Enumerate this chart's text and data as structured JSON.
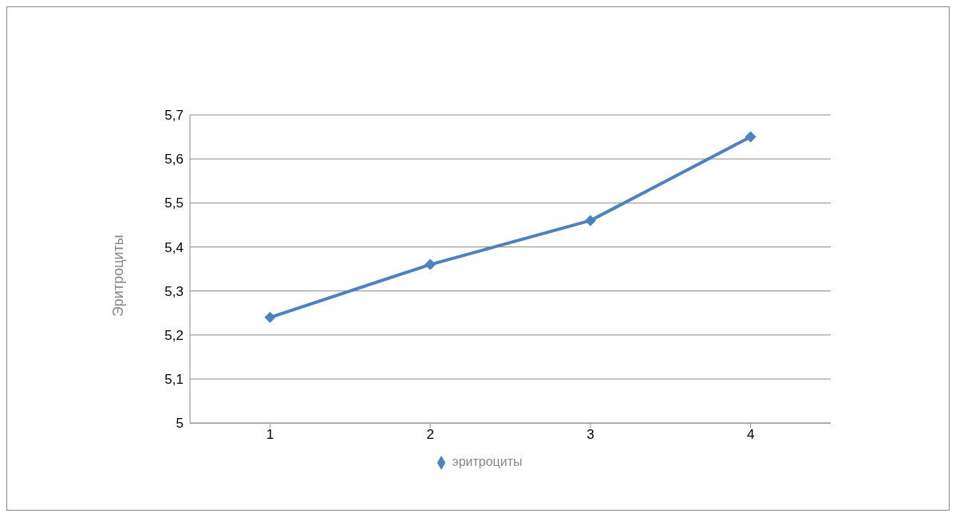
{
  "chart_data": {
    "type": "line",
    "ylabel": "Эритроциты",
    "categories": [
      "1",
      "2",
      "3",
      "4"
    ],
    "series": [
      {
        "name": "эритроциты",
        "color": "#4f81bd",
        "values": [
          5.24,
          5.36,
          5.46,
          5.65
        ]
      }
    ],
    "ylim": [
      5,
      5.7
    ],
    "yticks": [
      5,
      {
        "value": 5.1,
        "label": "5,1"
      },
      {
        "value": 5.2,
        "label": "5,2"
      },
      {
        "value": 5.3,
        "label": "5,3"
      },
      {
        "value": 5.4,
        "label": "5,4"
      },
      {
        "value": 5.5,
        "label": "5,5"
      },
      {
        "value": 5.6,
        "label": "5,6"
      },
      {
        "value": 5.7,
        "label": "5,7"
      }
    ],
    "grid": "y",
    "legend": "bottom",
    "marker": "diamond"
  }
}
